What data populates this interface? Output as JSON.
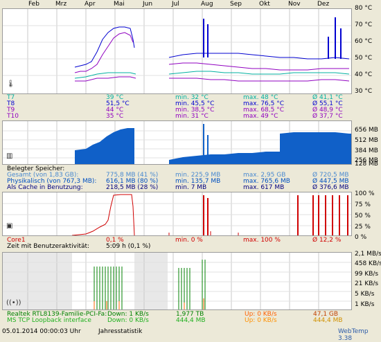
{
  "months": [
    "Feb",
    "Mrz",
    "Apr",
    "Mai",
    "Jun",
    "Jul",
    "Aug",
    "Sep",
    "Okt",
    "Nov",
    "Dez"
  ],
  "temperature": {
    "y_labels": [
      "80 °C",
      "70 °C",
      "60 °C",
      "50 °C",
      "40 °C",
      "30 °C"
    ],
    "rows": [
      {
        "name": "T7",
        "value": "39 °C",
        "min": "min. 32 °C",
        "max": "max. 48 °C",
        "avg": "Ø 41,1 °C",
        "color": "#00b0a0"
      },
      {
        "name": "T8",
        "value": "51,5 °C",
        "min": "min. 45,5 °C",
        "max": "max. 76,5 °C",
        "avg": "Ø 55,1 °C",
        "color": "#0000d0"
      },
      {
        "name": "T9",
        "value": "44 °C",
        "min": "min. 38,5 °C",
        "max": "max. 68,5 °C",
        "avg": "Ø 48,9 °C",
        "color": "#9000c0"
      },
      {
        "name": "T10",
        "value": "35 °C",
        "min": "min. 31 °C",
        "max": "max. 49 °C",
        "avg": "Ø 37,7 °C",
        "color": "#9000c0"
      }
    ]
  },
  "memory": {
    "y_labels": [
      "656 MB",
      "512 MB",
      "384 MB",
      "256 MB",
      "128 MB"
    ],
    "header": "Belegter Speicher:",
    "rows": [
      {
        "name": "Gesamt (von 1,83 GB):",
        "value": "775,8 MB (41 %)",
        "min": "min. 225,9 MB",
        "max": "max. 2,95 GB",
        "avg": "Ø 720,5 MB",
        "color": "#4a8ad0"
      },
      {
        "name": "Physikalisch (von 767,3 MB):",
        "value": "616,1 MB (80 %)",
        "min": "min. 135,7 MB",
        "max": "max. 765,6 MB",
        "avg": "Ø 447,5 MB",
        "color": "#0050c0"
      },
      {
        "name": "Als Cache in Benutzung:",
        "value": "218,5 MB (28 %)",
        "min": "min. 7 MB",
        "max": "max. 617 MB",
        "avg": "Ø 376,6 MB",
        "color": "#000080"
      }
    ]
  },
  "cpu": {
    "y_labels": [
      "100 %",
      "75 %",
      "50 %",
      "25 %",
      "0 %"
    ],
    "rows": [
      {
        "name": "Core1",
        "value": "0,1 %",
        "min": "min. 0 %",
        "max": "max. 100 %",
        "avg": "Ø 12,2 %",
        "color": "#d00000"
      }
    ],
    "activity_label": "Zeit mit Benutzeraktivität:",
    "activity_value": "5:09 h (0,1 %)"
  },
  "network": {
    "y_labels": [
      "2,1 MB/s",
      "458 KB/s",
      "99 KB/s",
      "21 KB/s",
      "5 KB/s",
      "1 KB/s"
    ],
    "rows": [
      {
        "name": "Realtek RTL8139-Familie-PCI-Fa:",
        "down": "Down: 1 KB/s",
        "total_down": "1,977 TB",
        "up": "Up: 0 KB/s",
        "total_up": "47,1 GB",
        "color": "#008000",
        "up_color": "#ff6000",
        "total_up_color": "#c04000"
      },
      {
        "name": "MS TCP Loopback interface",
        "down": "Down: 0 KB/s",
        "total_down": "444,4 MB",
        "up": "Up: 0 KB/s",
        "total_up": "444,4 MB",
        "color": "#20b020",
        "up_color": "#ff9000",
        "total_up_color": "#d09000"
      }
    ]
  },
  "status": {
    "timestamp": "05.01.2014 00:00:03 Uhr",
    "view": "Jahresstatistik",
    "app": "WebTemp 3.38"
  },
  "icons": {
    "temp": "thermometer-icon",
    "memory": "memory-chip-icon",
    "cpu": "cpu-chip-icon",
    "network": "network-signal-icon"
  }
}
